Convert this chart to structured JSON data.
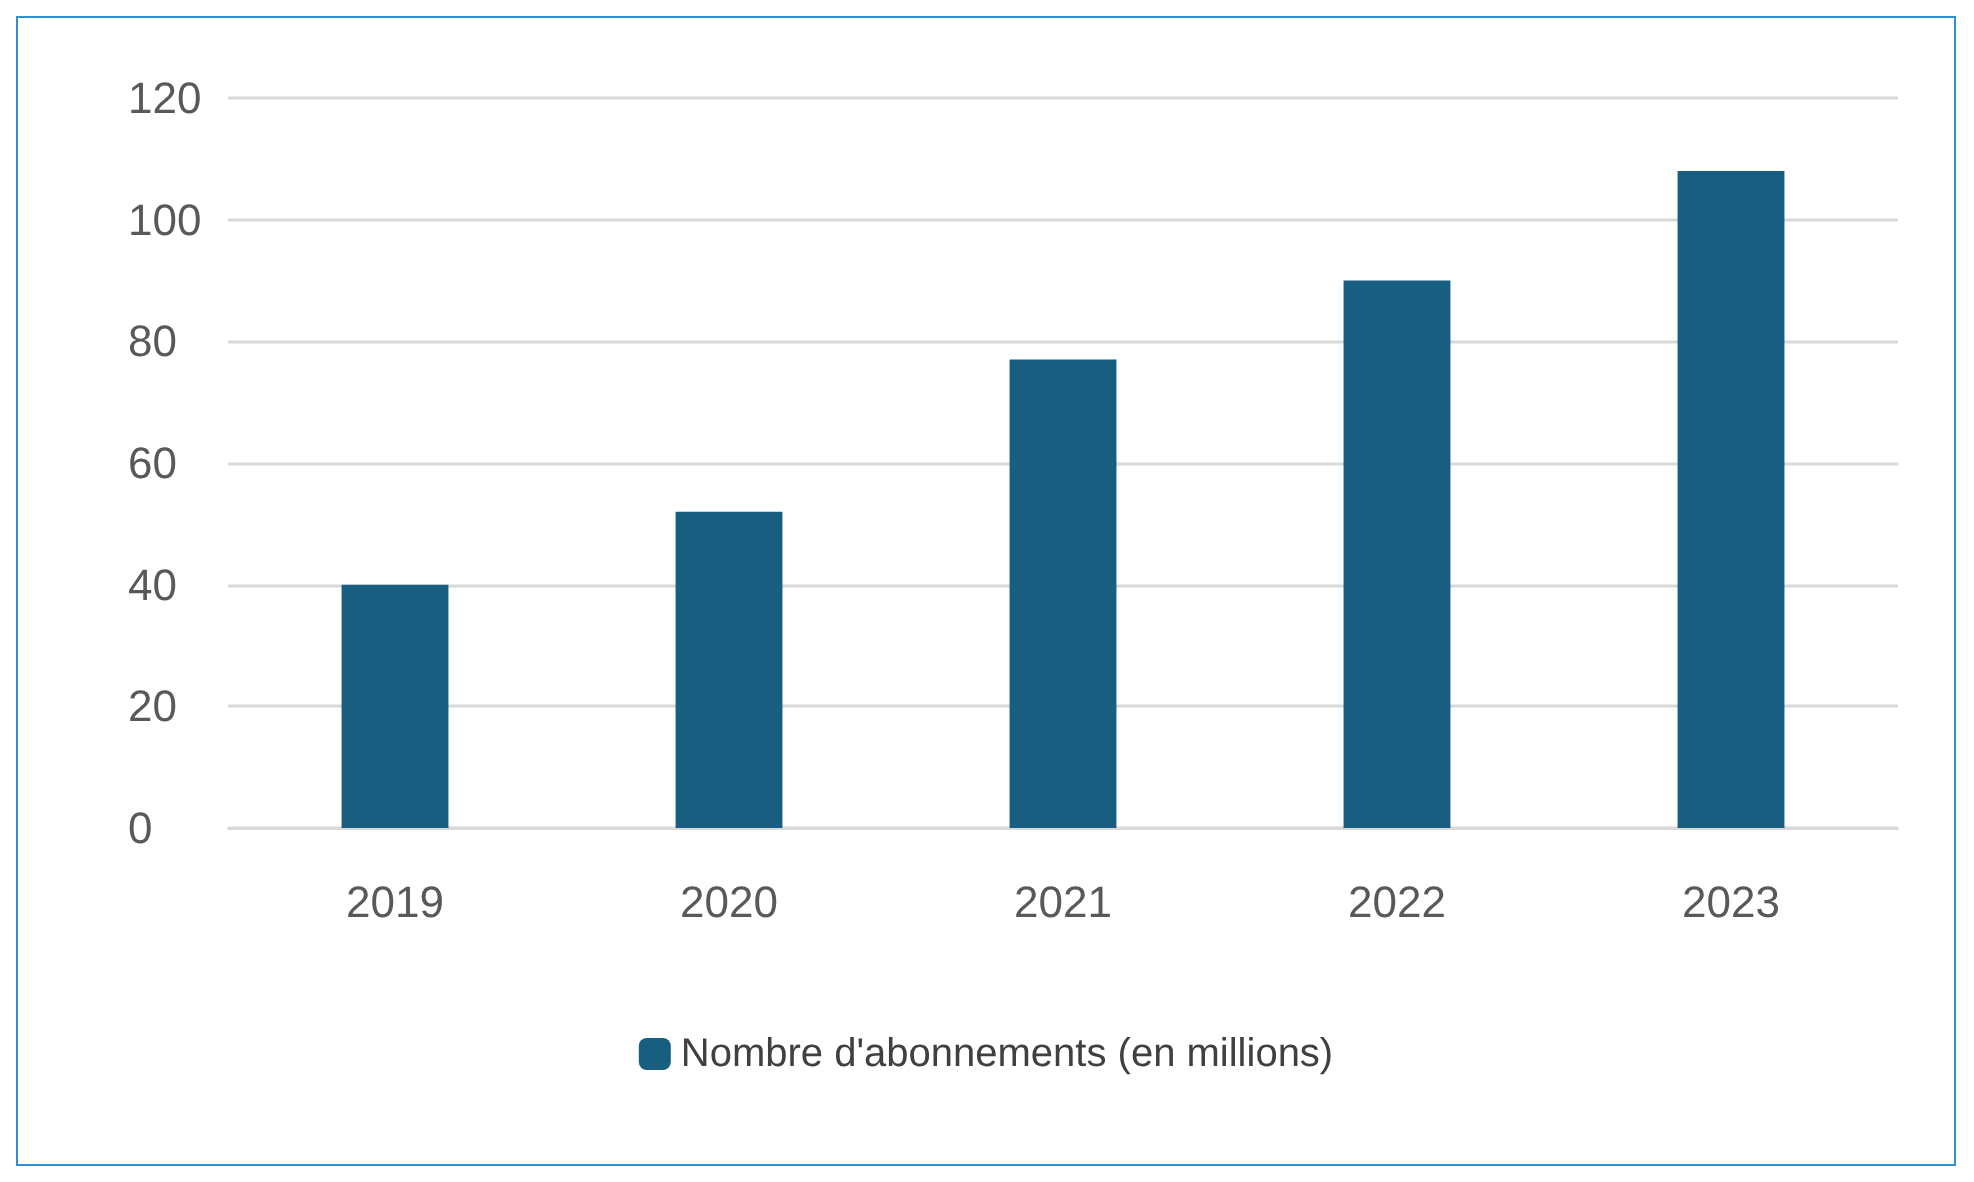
{
  "chart_data": {
    "type": "bar",
    "categories": [
      "2019",
      "2020",
      "2021",
      "2022",
      "2023"
    ],
    "series": [
      {
        "name": "Nombre d'abonnements (en millions)",
        "color": "#175e80",
        "values": [
          40,
          52,
          77,
          90,
          108
        ]
      }
    ],
    "ylim": [
      0,
      120
    ],
    "yticks": [
      0,
      20,
      40,
      60,
      80,
      100,
      120
    ],
    "grid": "y",
    "legend": "bottom"
  }
}
